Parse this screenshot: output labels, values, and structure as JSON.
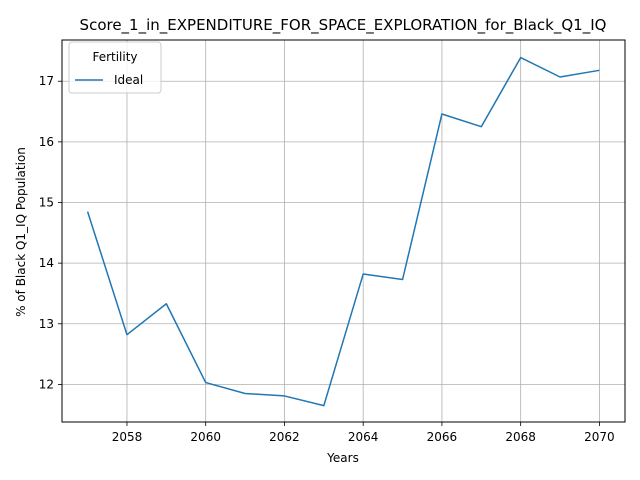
{
  "chart_data": {
    "type": "line",
    "title": "Score_1_in_EXPENDITURE_FOR_SPACE_EXPLORATION_for_Black_Q1_IQ",
    "xlabel": "Years",
    "ylabel": "% of Black Q1_IQ Population",
    "x": [
      2057,
      2058,
      2059,
      2060,
      2061,
      2062,
      2063,
      2064,
      2065,
      2066,
      2067,
      2068,
      2069,
      2070
    ],
    "series": [
      {
        "name": "Ideal",
        "color": "#1f77b4",
        "values": [
          14.85,
          12.82,
          13.33,
          12.03,
          11.85,
          11.81,
          11.65,
          13.82,
          13.73,
          16.46,
          16.25,
          17.39,
          17.07,
          17.18
        ]
      }
    ],
    "xlim": [
      2056.35,
      2070.65
    ],
    "ylim": [
      11.38,
      17.68
    ],
    "xticks": [
      2058,
      2060,
      2062,
      2064,
      2066,
      2068,
      2070
    ],
    "yticks": [
      12,
      13,
      14,
      15,
      16,
      17
    ],
    "grid": true,
    "legend": {
      "title": "Fertility",
      "placement": "top-left"
    }
  }
}
